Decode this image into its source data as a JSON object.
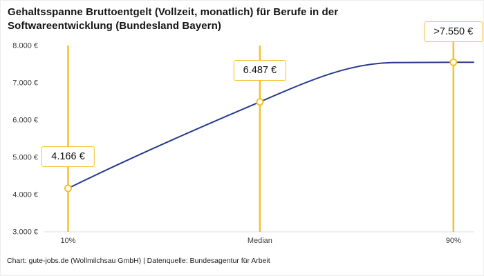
{
  "header": {
    "title": "Gehaltsspanne Bruttoentgelt (Vollzeit, monatlich) für Berufe in der Softwareentwicklung (Bundesland Bayern)"
  },
  "footer": {
    "credit": "Chart: gute-jobs.de (Wollmilchsau GmbH) | Datenquelle: Bundesagentur für Arbeit"
  },
  "chart_data": {
    "type": "line",
    "title": "Gehaltsspanne Bruttoentgelt (Vollzeit, monatlich) für Berufe in der Softwareentwicklung (Bundesland Bayern)",
    "x_categories": [
      "10%",
      "Median",
      "90%"
    ],
    "points": [
      {
        "category": "10%",
        "value": 4166,
        "display": "4.166 €"
      },
      {
        "category": "Median",
        "value": 6487,
        "display": "6.487 €"
      },
      {
        "category": "90%",
        "value": 7550,
        "display": ">7.550 €"
      }
    ],
    "ylim": [
      3000,
      8000
    ],
    "y_ticks": [
      {
        "value": 8000,
        "label": "8.000 €"
      },
      {
        "value": 7000,
        "label": "7.000 €"
      },
      {
        "value": 6000,
        "label": "6.000 €"
      },
      {
        "value": 5000,
        "label": "5.000 €"
      },
      {
        "value": 4000,
        "label": "4.000 €"
      },
      {
        "value": 3000,
        "label": "3.000 €"
      }
    ],
    "grid": false,
    "legend": "none",
    "colors": {
      "line": "#283A91",
      "accent": "#F2C230",
      "marker_fill": "#FFFFFF",
      "axis": "#DCDCDC",
      "tick_text": "#3A3A3A"
    }
  }
}
